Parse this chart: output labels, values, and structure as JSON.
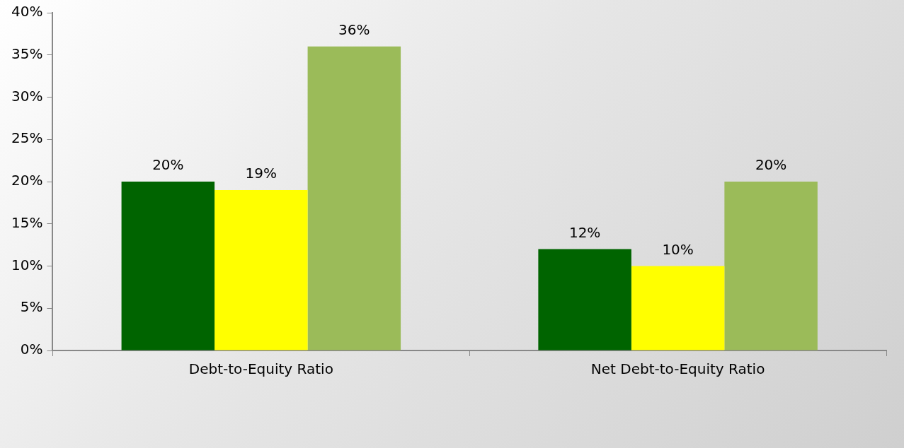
{
  "chart_data": {
    "type": "bar",
    "categories": [
      "Debt-to-Equity Ratio",
      "Net Debt-to-Equity Ratio"
    ],
    "series": [
      {
        "color": "#006400",
        "values": [
          20,
          12
        ],
        "value_labels": [
          "20%",
          "12%"
        ]
      },
      {
        "color": "#ffff00",
        "values": [
          19,
          10
        ],
        "value_labels": [
          "19%",
          "10%"
        ]
      },
      {
        "color": "#9bbb59",
        "values": [
          36,
          20
        ],
        "value_labels": [
          "36%",
          "20%"
        ]
      }
    ],
    "ylim": [
      0,
      40
    ],
    "yticks": [
      {
        "value": 0,
        "label": "0%"
      },
      {
        "value": 5,
        "label": "5%"
      },
      {
        "value": 10,
        "label": "10%"
      },
      {
        "value": 15,
        "label": "15%"
      },
      {
        "value": 20,
        "label": "20%"
      },
      {
        "value": 25,
        "label": "25%"
      },
      {
        "value": 30,
        "label": "30%"
      },
      {
        "value": 35,
        "label": "35%"
      },
      {
        "value": 40,
        "label": "40%"
      }
    ],
    "grid": false,
    "legend": false
  }
}
